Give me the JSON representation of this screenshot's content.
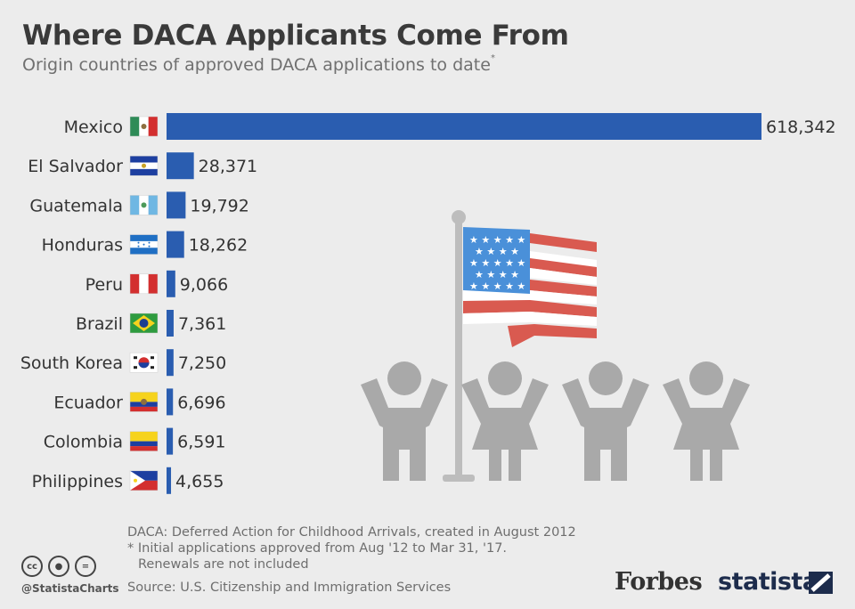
{
  "title": "Where DACA Applicants Come From",
  "subtitle": "Origin countries of approved DACA applications to date",
  "subtitle_mark": "*",
  "chart_data": {
    "type": "bar",
    "orientation": "horizontal",
    "categories": [
      "Mexico",
      "El Salvador",
      "Guatemala",
      "Honduras",
      "Peru",
      "Brazil",
      "South Korea",
      "Ecuador",
      "Colombia",
      "Philippines"
    ],
    "values": [
      618342,
      28371,
      19792,
      18262,
      9066,
      7361,
      7250,
      6696,
      6591,
      4655
    ],
    "value_labels": [
      "618,342",
      "28,371",
      "19,792",
      "18,262",
      "9,066",
      "7,361",
      "7,250",
      "6,696",
      "6,591",
      "4,655"
    ],
    "flags": [
      "mexico-flag",
      "el-salvador-flag",
      "guatemala-flag",
      "honduras-flag",
      "peru-flag",
      "brazil-flag",
      "south-korea-flag",
      "ecuador-flag",
      "colombia-flag",
      "philippines-flag"
    ],
    "bar_color": "#2a5db0",
    "grid": false
  },
  "illustration": {
    "icon": "us-flag-with-children-icon",
    "figure_color": "#a9a9a9",
    "flag_red": "#d95a50",
    "flag_blue": "#4a90d9"
  },
  "footer": {
    "note1": "DACA: Deferred Action for Childhood Arrivals, created in August 2012",
    "note2": "* Initial applications approved from Aug '12 to Mar 31, '17.",
    "note3": "Renewals are not included",
    "source": "Source: U.S. Citizenship and Immigration Services",
    "handle": "@StatistaCharts",
    "cc_icons": [
      "cc",
      "by",
      "nd"
    ],
    "brand1": "Forbes",
    "brand2": "statista"
  }
}
